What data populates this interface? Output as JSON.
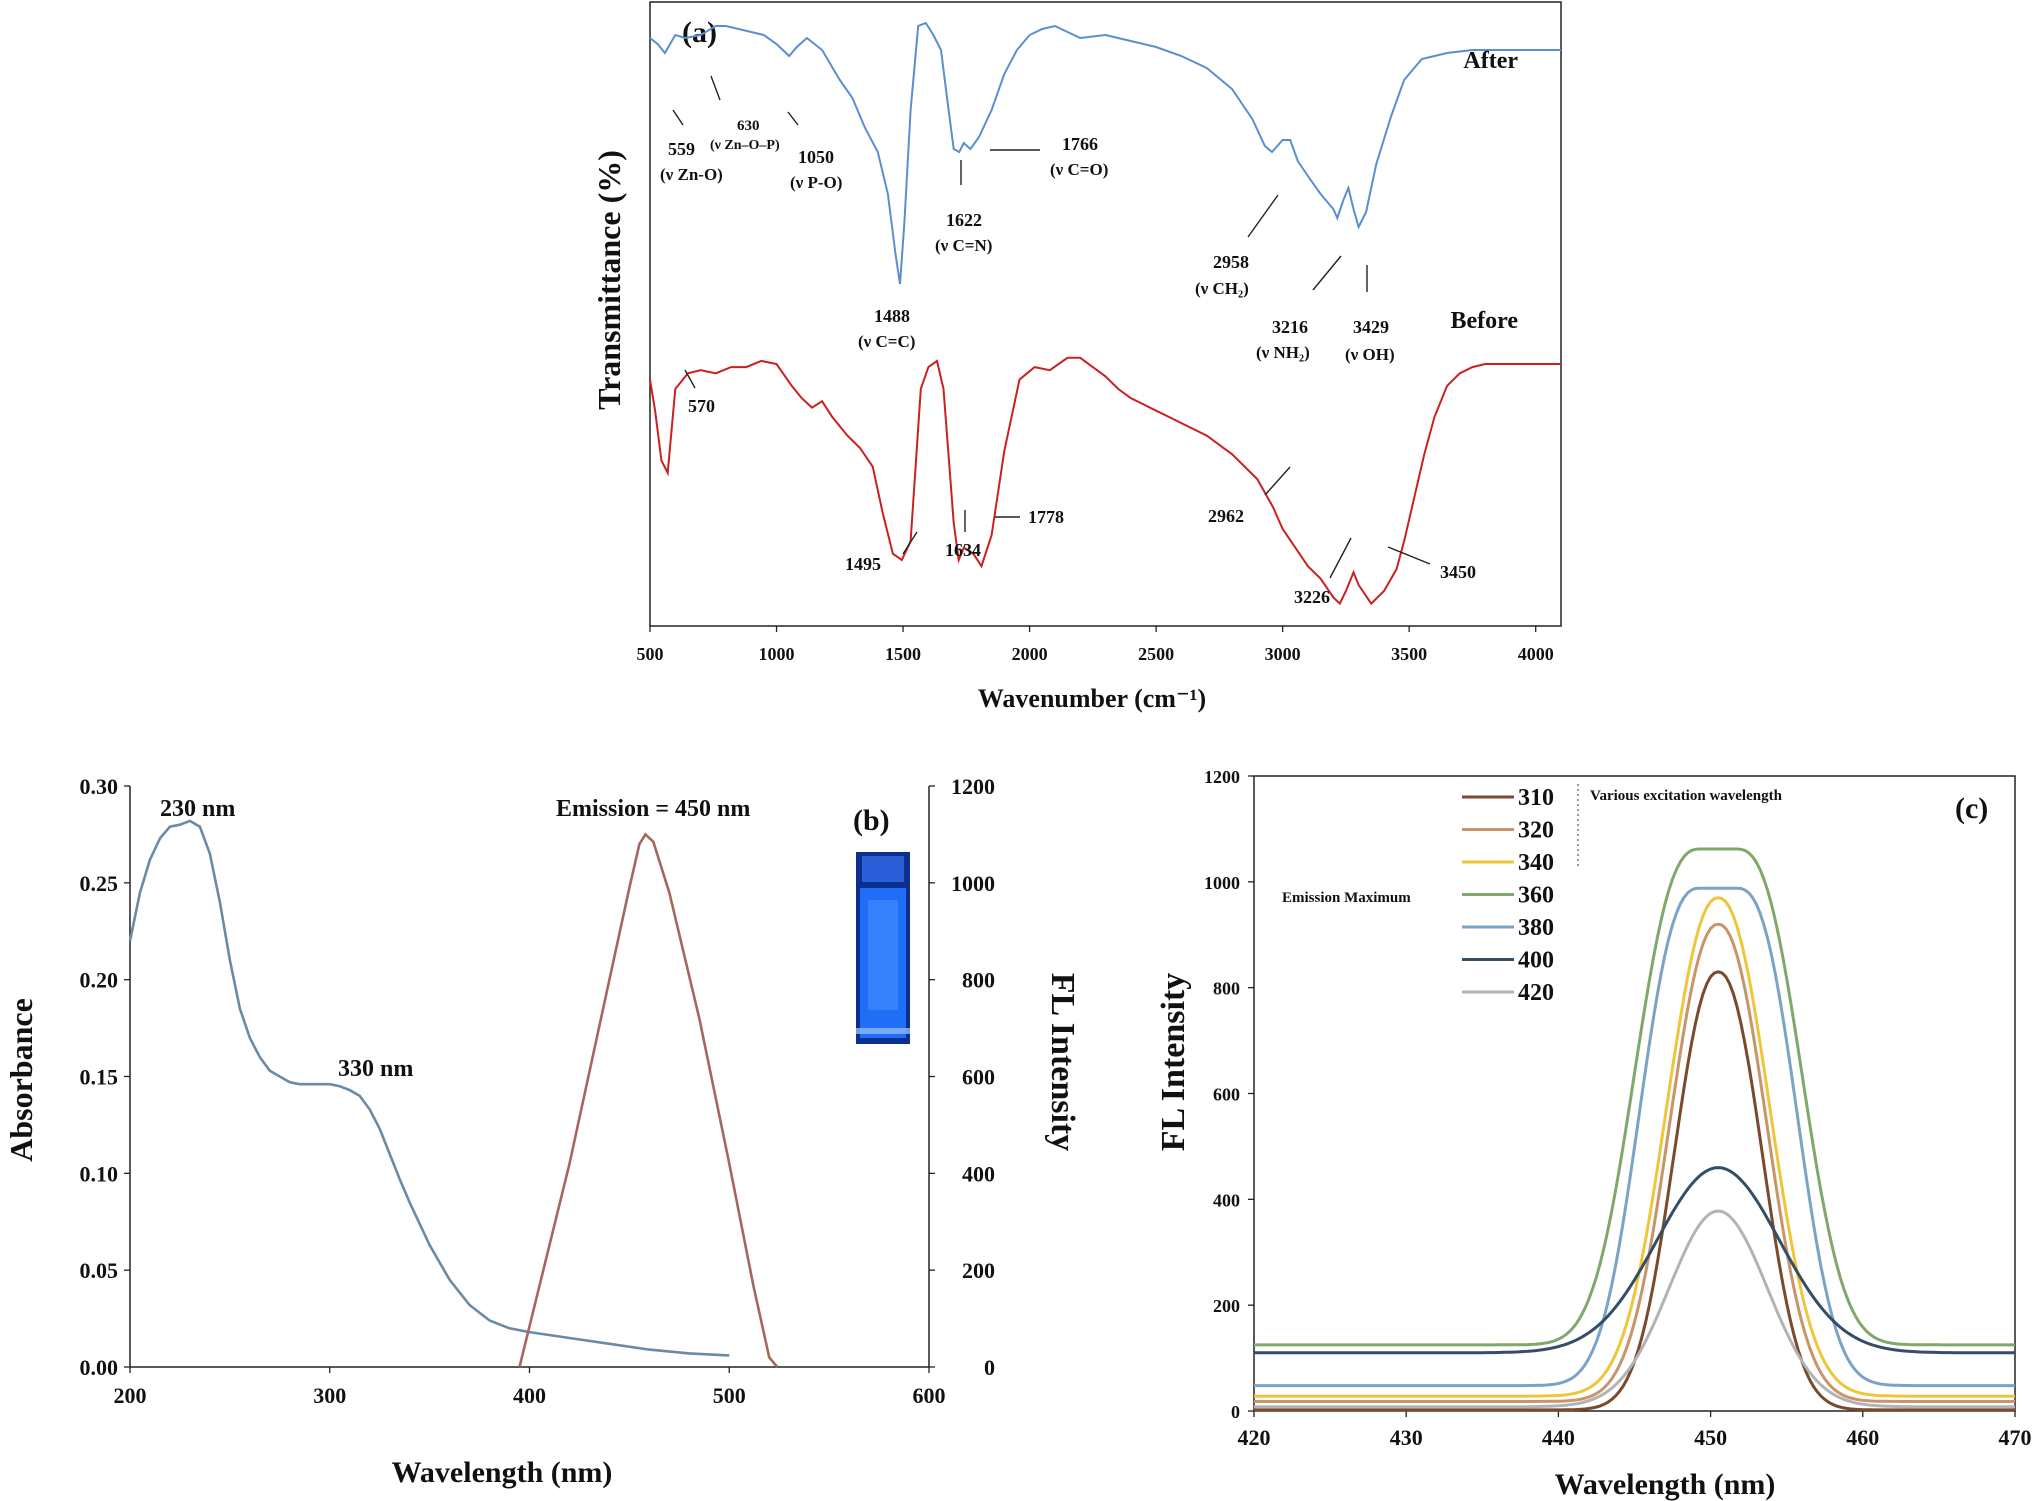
{
  "chart_data": [
    {
      "id": "a",
      "type": "line",
      "panel_label": "(a)",
      "xlabel": "Wavenumber (cm⁻¹)",
      "ylabel": "Transmittance (%)",
      "xlim": [
        500,
        4100
      ],
      "x_ticks": [
        500,
        1000,
        1500,
        2000,
        2500,
        3000,
        3500,
        4000
      ],
      "y_ticks": [],
      "grid": false,
      "series": [
        {
          "name": "After",
          "color": "#5b8ed0",
          "x": [
            500,
            530,
            559,
            600,
            640,
            700,
            760,
            800,
            850,
            900,
            950,
            1000,
            1050,
            1080,
            1120,
            1180,
            1250,
            1300,
            1350,
            1400,
            1440,
            1470,
            1488,
            1505,
            1530,
            1560,
            1590,
            1620,
            1650,
            1680,
            1700,
            1722,
            1740,
            1766,
            1800,
            1850,
            1900,
            1950,
            2000,
            2050,
            2100,
            2150,
            2200,
            2300,
            2400,
            2500,
            2600,
            2700,
            2800,
            2880,
            2930,
            2958,
            3000,
            3030,
            3060,
            3100,
            3150,
            3200,
            3216,
            3240,
            3260,
            3280,
            3300,
            3330,
            3370,
            3429,
            3480,
            3550,
            3650,
            3750,
            3850,
            3950,
            4100
          ],
          "y": [
            84,
            82,
            79,
            85,
            84,
            85,
            88,
            88,
            87,
            86,
            85,
            82,
            78,
            81,
            84,
            80,
            70,
            64,
            54,
            46,
            32,
            12,
            2,
            22,
            60,
            88,
            89,
            85,
            80,
            60,
            47,
            46,
            49,
            47,
            51,
            60,
            72,
            80,
            85,
            87,
            88,
            86,
            84,
            85,
            83,
            81,
            78,
            74,
            67,
            57,
            48,
            46,
            50,
            50,
            43,
            38,
            32,
            27,
            24,
            30,
            34,
            27,
            21,
            26,
            42,
            58,
            70,
            77,
            79,
            80,
            80,
            80,
            80
          ]
        },
        {
          "name": "Before",
          "color": "#cc2020",
          "x": [
            500,
            520,
            545,
            570,
            600,
            650,
            700,
            760,
            820,
            880,
            940,
            1000,
            1060,
            1100,
            1140,
            1180,
            1220,
            1280,
            1330,
            1380,
            1420,
            1460,
            1495,
            1530,
            1570,
            1600,
            1634,
            1660,
            1700,
            1720,
            1740,
            1778,
            1810,
            1850,
            1900,
            1960,
            2020,
            2080,
            2150,
            2200,
            2250,
            2300,
            2350,
            2400,
            2450,
            2500,
            2550,
            2600,
            2700,
            2800,
            2900,
            2962,
            3000,
            3050,
            3100,
            3150,
            3200,
            3226,
            3250,
            3280,
            3300,
            3350,
            3400,
            3450,
            3480,
            3520,
            3560,
            3600,
            3650,
            3700,
            3750,
            3800,
            3900,
            4000,
            4100
          ],
          "y": [
            58,
            48,
            32,
            28,
            55,
            60,
            61,
            60,
            62,
            62,
            64,
            63,
            56,
            52,
            49,
            51,
            46,
            40,
            36,
            30,
            15,
            2,
            0,
            6,
            55,
            62,
            64,
            55,
            12,
            0,
            4,
            2,
            -2,
            8,
            35,
            58,
            62,
            61,
            65,
            65,
            62,
            59,
            55,
            52,
            50,
            48,
            46,
            44,
            40,
            34,
            26,
            17,
            10,
            4,
            -2,
            -6,
            -12,
            -14,
            -10,
            -4,
            -8,
            -14,
            -10,
            -3,
            6,
            20,
            34,
            46,
            56,
            60,
            62,
            63,
            63,
            63,
            63
          ]
        }
      ],
      "annotations": [
        {
          "text": "559",
          "sub": "(ν Zn-O)"
        },
        {
          "text": "630",
          "sub": "(ν Zn–O–P)"
        },
        {
          "text": "1050",
          "sub": "(ν P-O)"
        },
        {
          "text": "1488",
          "sub": "(ν C=C)"
        },
        {
          "text": "1622",
          "sub": "(ν C=N)"
        },
        {
          "text": "1766",
          "sub": "(ν C=O)"
        },
        {
          "text": "2958",
          "sub": "(ν CH₂)"
        },
        {
          "text": "3216",
          "sub": "(ν NH₂)"
        },
        {
          "text": "3429",
          "sub": "(ν OH)"
        },
        {
          "text": "570"
        },
        {
          "text": "1495"
        },
        {
          "text": "1634"
        },
        {
          "text": "1778"
        },
        {
          "text": "2962"
        },
        {
          "text": "3226"
        },
        {
          "text": "3450"
        }
      ]
    },
    {
      "id": "b",
      "type": "line",
      "panel_label": "(b)",
      "xlabel": "Wavelength (nm)",
      "ylabel": "Absorbance",
      "ylabel_right": "FL Intensity",
      "xlim": [
        200,
        600
      ],
      "ylim": [
        0,
        0.3
      ],
      "ylim_right": [
        0,
        1200
      ],
      "x_ticks": [
        200,
        300,
        400,
        500,
        600
      ],
      "y_ticks": [
        "0.00",
        "0.05",
        "0.10",
        "0.15",
        "0.20",
        "0.25",
        "0.30"
      ],
      "y_ticks_right": [
        0,
        200,
        400,
        600,
        800,
        1000,
        1200
      ],
      "grid": false,
      "labels": [
        "230 nm",
        "330 nm",
        "Emission = 450 nm"
      ],
      "vial_color": "#1f6ef5",
      "series": [
        {
          "axis": "left",
          "color": "#6b8aa6",
          "x": [
            200,
            205,
            210,
            215,
            220,
            225,
            230,
            235,
            240,
            245,
            250,
            255,
            260,
            265,
            270,
            275,
            280,
            285,
            290,
            295,
            300,
            305,
            310,
            315,
            320,
            325,
            330,
            335,
            340,
            345,
            350,
            360,
            370,
            380,
            390,
            400,
            420,
            440,
            460,
            480,
            500
          ],
          "y": [
            0.22,
            0.245,
            0.262,
            0.273,
            0.279,
            0.28,
            0.282,
            0.279,
            0.265,
            0.24,
            0.21,
            0.185,
            0.17,
            0.16,
            0.153,
            0.15,
            0.147,
            0.146,
            0.146,
            0.146,
            0.146,
            0.145,
            0.143,
            0.14,
            0.133,
            0.123,
            0.11,
            0.097,
            0.085,
            0.074,
            0.063,
            0.045,
            0.032,
            0.024,
            0.02,
            0.018,
            0.015,
            0.012,
            0.009,
            0.007,
            0.006
          ]
        },
        {
          "axis": "right",
          "color": "#a5675d",
          "x": [
            395,
            420,
            440,
            450,
            455,
            458,
            462,
            470,
            485,
            500,
            512,
            520,
            524
          ],
          "y": [
            0,
            420,
            800,
            990,
            1080,
            1100,
            1085,
            980,
            720,
            420,
            170,
            20,
            0
          ]
        }
      ]
    },
    {
      "id": "c",
      "type": "line",
      "panel_label": "(c)",
      "xlabel": "Wavelength (nm)",
      "ylabel": "FL Intensity",
      "xlim": [
        420,
        470
      ],
      "ylim": [
        0,
        1200
      ],
      "x_ticks": [
        420,
        430,
        440,
        450,
        460,
        470
      ],
      "y_ticks": [
        0,
        200,
        400,
        600,
        800,
        1000,
        1200
      ],
      "grid": false,
      "legend_title": "Various excitation wavelength",
      "side_label": "Emission Maximum",
      "legend_position": "top-left",
      "series": [
        {
          "name": "310",
          "color": "#7a4a2c",
          "base": 2,
          "peak": 830,
          "width": 6.2,
          "shape": "narrow"
        },
        {
          "name": "320",
          "color": "#c9946a",
          "base": 18,
          "peak": 920,
          "width": 6.8,
          "shape": "narrow"
        },
        {
          "name": "340",
          "color": "#efc63a",
          "base": 28,
          "peak": 970,
          "width": 7.2,
          "shape": "narrow"
        },
        {
          "name": "360",
          "color": "#7fa86a",
          "base": 125,
          "peak": 1062,
          "width": 9.5,
          "shape": "flat"
        },
        {
          "name": "380",
          "color": "#7aa3c8",
          "base": 48,
          "peak": 988,
          "width": 8.8,
          "shape": "flat"
        },
        {
          "name": "400",
          "color": "#334e66",
          "base": 110,
          "peak": 460,
          "width": 9.5,
          "shape": "broad"
        },
        {
          "name": "420",
          "color": "#b3b3b3",
          "base": 8,
          "peak": 378,
          "width": 7.6,
          "shape": "gauss"
        }
      ]
    }
  ]
}
